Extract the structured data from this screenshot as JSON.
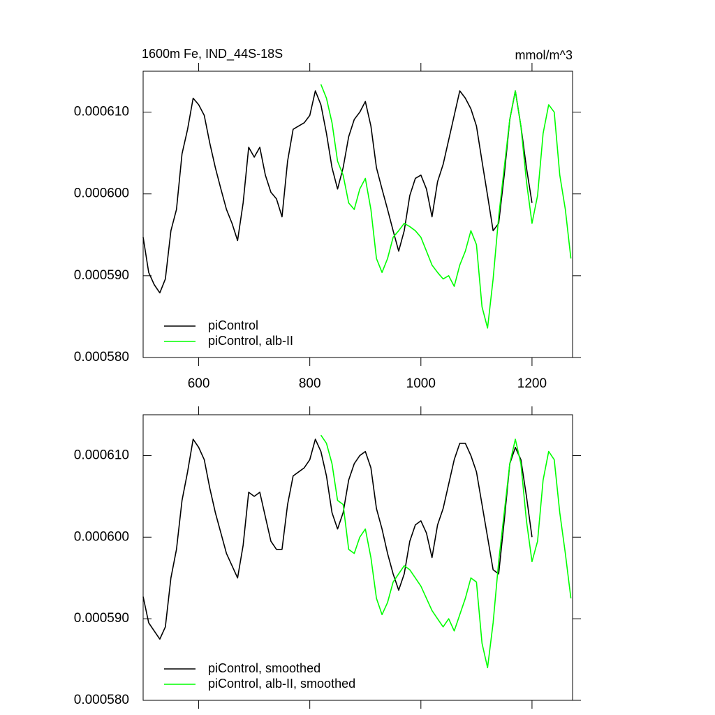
{
  "chart_data": [
    {
      "type": "line",
      "title": "1600m Fe, IND_44S-18S",
      "units": "mmol/m^3",
      "x": [
        500,
        510,
        520,
        530,
        540,
        550,
        560,
        570,
        580,
        590,
        600,
        610,
        620,
        630,
        640,
        650,
        660,
        670,
        680,
        690,
        700,
        710,
        720,
        730,
        740,
        750,
        760,
        770,
        780,
        790,
        800,
        810,
        820,
        830,
        840,
        850,
        860,
        870,
        880,
        890,
        900,
        910,
        920,
        930,
        940,
        950,
        960,
        970,
        980,
        990,
        1000,
        1010,
        1020,
        1030,
        1040,
        1050,
        1060,
        1070,
        1080,
        1090,
        1100,
        1110,
        1120,
        1130,
        1140,
        1150,
        1160,
        1170,
        1180,
        1190,
        1200,
        1210,
        1220,
        1230,
        1240,
        1250,
        1260,
        1270
      ],
      "series": [
        {
          "name": "piControl",
          "color": "#000000",
          "values": [
            0.0005947,
            0.0005904,
            0.0005889,
            0.0005879,
            0.0005896,
            0.0005955,
            0.0005981,
            0.0006049,
            0.0006079,
            0.0006117,
            0.0006109,
            0.0006096,
            0.0006062,
            0.0006032,
            0.0006006,
            0.0005981,
            0.0005964,
            0.0005943,
            0.0005989,
            0.0006057,
            0.0006045,
            0.0006057,
            0.0006023,
            0.0006002,
            0.0005994,
            0.0005972,
            0.000604,
            0.0006079,
            0.0006083,
            0.0006087,
            0.0006096,
            0.0006126,
            0.0006109,
            0.0006074,
            0.0006032,
            0.0006006,
            0.0006032,
            0.000607,
            0.0006091,
            0.00061,
            0.0006113,
            0.0006083,
            0.0006032,
            0.0006006,
            0.0005981,
            0.0005955,
            0.000593,
            0.0005955,
            0.0005998,
            0.0006019,
            0.0006023,
            0.0006006,
            0.0005972,
            0.0006015,
            0.0006036,
            0.0006066,
            0.0006096,
            0.0006126,
            0.0006117,
            0.0006104,
            0.0006083,
            0.000604,
            0.0005998,
            0.0005955,
            0.0005964,
            0.0006023,
            0.0006091,
            0.0006126,
            0.0006083,
            0.0006032,
            0.0005989,
            null,
            null,
            null,
            null,
            null,
            null,
            null
          ]
        },
        {
          "name": "piControl, alb-II",
          "color": "#00ff00",
          "values": [
            null,
            null,
            null,
            null,
            null,
            null,
            null,
            null,
            null,
            null,
            null,
            null,
            null,
            null,
            null,
            null,
            null,
            null,
            null,
            null,
            null,
            null,
            null,
            null,
            null,
            null,
            null,
            null,
            null,
            null,
            null,
            null,
            0.0006134,
            0.0006117,
            0.0006087,
            0.000604,
            0.0006023,
            0.0005989,
            0.0005981,
            0.0006006,
            0.0006019,
            0.0005981,
            0.0005921,
            0.0005904,
            0.0005921,
            0.0005947,
            0.0005955,
            0.0005964,
            0.000596,
            0.0005955,
            0.0005947,
            0.000593,
            0.0005913,
            0.0005904,
            0.0005896,
            0.00059,
            0.0005887,
            0.0005913,
            0.000593,
            0.0005955,
            0.0005938,
            0.0005862,
            0.0005836,
            0.0005896,
            0.0005972,
            0.0006032,
            0.0006091,
            0.0006126,
            0.0006083,
            0.0006015,
            0.0005964,
            0.0005998,
            0.0006074,
            0.0006109,
            0.00061,
            0.0006023,
            0.0005981,
            0.0005921
          ]
        }
      ],
      "xlim": [
        500,
        1273
      ],
      "xticks": [
        600,
        800,
        1000,
        1200
      ],
      "xtick_labels": true,
      "ylim": [
        0.00058,
        0.000615
      ],
      "yticks": [
        {
          "value": 0.00058,
          "label": "0.000580"
        },
        {
          "value": 0.00059,
          "label": "0.000590"
        },
        {
          "value": 0.0006,
          "label": "0.000600"
        },
        {
          "value": 0.00061,
          "label": "0.000610"
        }
      ],
      "grid": false,
      "legend": "lower left"
    },
    {
      "type": "line",
      "x": [
        500,
        510,
        520,
        530,
        540,
        550,
        560,
        570,
        580,
        590,
        600,
        610,
        620,
        630,
        640,
        650,
        660,
        670,
        680,
        690,
        700,
        710,
        720,
        730,
        740,
        750,
        760,
        770,
        780,
        790,
        800,
        810,
        820,
        830,
        840,
        850,
        860,
        870,
        880,
        890,
        900,
        910,
        920,
        930,
        940,
        950,
        960,
        970,
        980,
        990,
        1000,
        1010,
        1020,
        1030,
        1040,
        1050,
        1060,
        1070,
        1080,
        1090,
        1100,
        1110,
        1120,
        1130,
        1140,
        1150,
        1160,
        1170,
        1180,
        1190,
        1200,
        1210,
        1220,
        1230,
        1240,
        1250,
        1260,
        1270
      ],
      "series": [
        {
          "name": "piControl, smoothed",
          "color": "#000000",
          "values": [
            0.0005927,
            0.0005895,
            0.0005885,
            0.0005875,
            0.000589,
            0.000595,
            0.0005985,
            0.0006045,
            0.000608,
            0.000612,
            0.000611,
            0.0006095,
            0.000606,
            0.000603,
            0.0006005,
            0.000598,
            0.0005965,
            0.000595,
            0.000599,
            0.0006055,
            0.000605,
            0.0006055,
            0.0006025,
            0.0005995,
            0.0005985,
            0.0005985,
            0.000604,
            0.0006075,
            0.000608,
            0.0006085,
            0.0006095,
            0.000612,
            0.0006105,
            0.0006075,
            0.000603,
            0.000601,
            0.000603,
            0.000607,
            0.000609,
            0.00061,
            0.0006105,
            0.0006085,
            0.0006035,
            0.000601,
            0.000598,
            0.0005955,
            0.0005935,
            0.0005955,
            0.0005995,
            0.0006015,
            0.000602,
            0.0006005,
            0.0005975,
            0.0006015,
            0.0006035,
            0.0006065,
            0.0006095,
            0.0006115,
            0.0006115,
            0.00061,
            0.000608,
            0.000604,
            0.0006,
            0.000596,
            0.0005955,
            0.000602,
            0.000609,
            0.000611,
            0.0006095,
            0.000605,
            0.0006,
            null,
            null,
            null,
            null,
            null,
            null,
            null
          ]
        },
        {
          "name": "piControl, alb-II, smoothed",
          "color": "#00ff00",
          "values": [
            null,
            null,
            null,
            null,
            null,
            null,
            null,
            null,
            null,
            null,
            null,
            null,
            null,
            null,
            null,
            null,
            null,
            null,
            null,
            null,
            null,
            null,
            null,
            null,
            null,
            null,
            null,
            null,
            null,
            null,
            null,
            null,
            0.0006125,
            0.0006115,
            0.000609,
            0.0006045,
            0.000604,
            0.0005985,
            0.000598,
            0.0006,
            0.000601,
            0.0005975,
            0.0005925,
            0.0005905,
            0.000592,
            0.0005945,
            0.0005955,
            0.0005965,
            0.000596,
            0.000595,
            0.000594,
            0.0005925,
            0.000591,
            0.00059,
            0.000589,
            0.00059,
            0.0005885,
            0.0005905,
            0.0005925,
            0.000595,
            0.0005945,
            0.000587,
            0.000584,
            0.0005895,
            0.000597,
            0.000603,
            0.000609,
            0.000612,
            0.000609,
            0.000602,
            0.000597,
            0.0005995,
            0.000607,
            0.0006105,
            0.0006095,
            0.000603,
            0.000598,
            0.0005925
          ]
        }
      ],
      "xlim": [
        500,
        1273
      ],
      "xticks": [
        600,
        800,
        1000,
        1200
      ],
      "xtick_labels": false,
      "ylim": [
        0.00058,
        0.000615
      ],
      "yticks": [
        {
          "value": 0.00058,
          "label": "0.000580"
        },
        {
          "value": 0.00059,
          "label": "0.000590"
        },
        {
          "value": 0.0006,
          "label": "0.000600"
        },
        {
          "value": 0.00061,
          "label": "0.000610"
        }
      ],
      "grid": false,
      "legend": "lower left"
    }
  ]
}
